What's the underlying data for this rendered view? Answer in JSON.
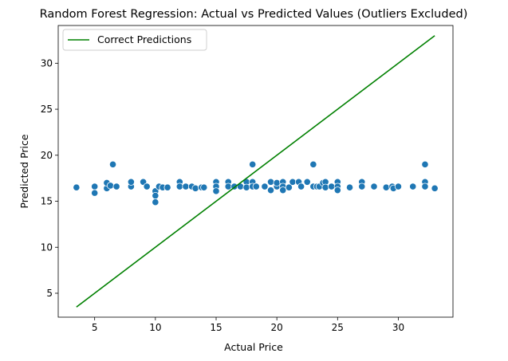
{
  "chart_data": {
    "type": "scatter",
    "title": "Random Forest Regression: Actual vs Predicted Values (Outliers Excluded)",
    "xlabel": "Actual Price",
    "ylabel": "Predicted Price",
    "xlim": [
      2.0,
      34.5
    ],
    "ylim": [
      2.4,
      34.1
    ],
    "xticks": [
      5,
      10,
      15,
      20,
      25,
      30
    ],
    "yticks": [
      5,
      10,
      15,
      20,
      25,
      30
    ],
    "grid": false,
    "legend": {
      "position": "top-left",
      "entries": [
        "Correct Predictions"
      ]
    },
    "colors": {
      "points": "#1f77b4",
      "line": "#008000",
      "point_edge": "#ffffff"
    },
    "line": {
      "name": "Correct Predictions",
      "x": [
        3.5,
        33.0
      ],
      "y": [
        3.5,
        33.0
      ]
    },
    "points": [
      [
        3.5,
        16.5
      ],
      [
        5.0,
        16.6
      ],
      [
        5.0,
        15.9
      ],
      [
        6.0,
        16.4
      ],
      [
        6.0,
        17.0
      ],
      [
        6.3,
        16.7
      ],
      [
        6.5,
        19.0
      ],
      [
        6.8,
        16.6
      ],
      [
        8.0,
        16.6
      ],
      [
        8.0,
        17.1
      ],
      [
        9.0,
        17.1
      ],
      [
        9.3,
        16.6
      ],
      [
        10.0,
        16.1
      ],
      [
        10.0,
        15.6
      ],
      [
        10.0,
        14.9
      ],
      [
        10.3,
        16.6
      ],
      [
        10.6,
        16.5
      ],
      [
        11.0,
        16.5
      ],
      [
        12.0,
        17.1
      ],
      [
        12.0,
        16.6
      ],
      [
        12.5,
        16.6
      ],
      [
        13.0,
        16.6
      ],
      [
        13.3,
        16.4
      ],
      [
        13.8,
        16.5
      ],
      [
        14.0,
        16.5
      ],
      [
        15.0,
        17.1
      ],
      [
        15.0,
        16.6
      ],
      [
        15.0,
        16.1
      ],
      [
        16.0,
        17.1
      ],
      [
        16.0,
        16.6
      ],
      [
        16.5,
        16.6
      ],
      [
        17.0,
        16.6
      ],
      [
        17.5,
        17.1
      ],
      [
        17.5,
        16.5
      ],
      [
        18.0,
        19.0
      ],
      [
        18.0,
        17.1
      ],
      [
        18.0,
        16.6
      ],
      [
        18.3,
        16.6
      ],
      [
        19.0,
        16.6
      ],
      [
        19.5,
        17.1
      ],
      [
        19.5,
        16.2
      ],
      [
        20.0,
        16.6
      ],
      [
        20.0,
        17.0
      ],
      [
        20.5,
        17.1
      ],
      [
        20.5,
        16.6
      ],
      [
        20.5,
        16.2
      ],
      [
        21.0,
        16.5
      ],
      [
        21.3,
        17.1
      ],
      [
        21.8,
        17.1
      ],
      [
        22.0,
        16.6
      ],
      [
        22.5,
        17.1
      ],
      [
        23.0,
        19.0
      ],
      [
        23.0,
        16.6
      ],
      [
        23.3,
        16.6
      ],
      [
        23.5,
        16.6
      ],
      [
        23.8,
        17.0
      ],
      [
        24.0,
        17.1
      ],
      [
        24.0,
        16.5
      ],
      [
        24.5,
        16.6
      ],
      [
        25.0,
        17.1
      ],
      [
        25.0,
        16.6
      ],
      [
        25.0,
        16.2
      ],
      [
        26.0,
        16.5
      ],
      [
        27.0,
        17.1
      ],
      [
        27.0,
        16.6
      ],
      [
        28.0,
        16.6
      ],
      [
        29.0,
        16.5
      ],
      [
        29.5,
        16.6
      ],
      [
        29.6,
        16.4
      ],
      [
        30.0,
        16.6
      ],
      [
        31.2,
        16.6
      ],
      [
        32.2,
        19.0
      ],
      [
        32.2,
        17.1
      ],
      [
        32.2,
        16.6
      ],
      [
        33.0,
        16.4
      ]
    ]
  }
}
